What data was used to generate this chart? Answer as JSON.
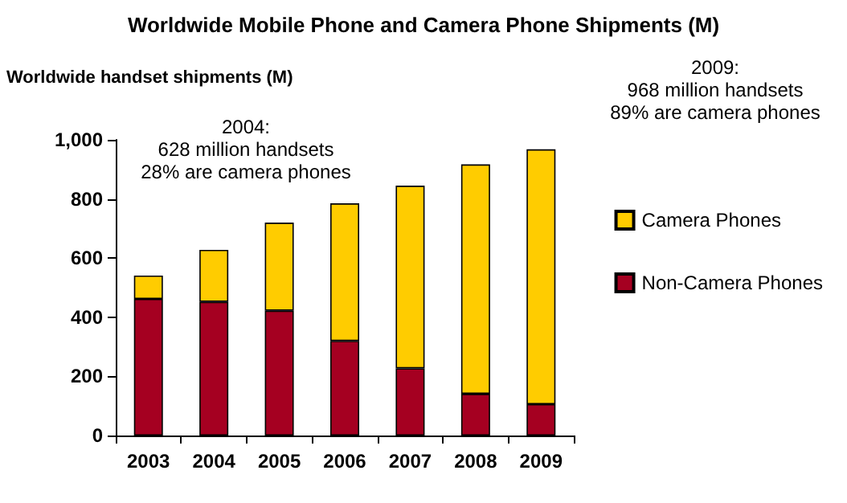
{
  "chart_data": {
    "type": "bar",
    "title": "Worldwide Mobile Phone and Camera Phone Shipments (M)",
    "ylabel": "Worldwide handset shipments (M)",
    "categories": [
      "2003",
      "2004",
      "2005",
      "2006",
      "2007",
      "2008",
      "2009"
    ],
    "series": [
      {
        "name": "Non-Camera Phones",
        "color": "#a50021",
        "values": [
          462,
          452,
          422,
          320,
          227,
          141,
          106
        ]
      },
      {
        "name": "Camera Phones",
        "color": "#ffcc00",
        "values": [
          79,
          176,
          298,
          465,
          618,
          776,
          862
        ]
      }
    ],
    "stacked": true,
    "ylim": [
      0,
      1000
    ],
    "yticks": [
      0,
      200,
      400,
      600,
      800,
      {
        "value": 1000,
        "label": "1,000"
      }
    ],
    "grid": false,
    "legend": "right",
    "annotations": [
      "2004:\n628 million handsets\n28% are camera phones",
      "2009:\n968 million handsets\n89% are camera phones"
    ]
  }
}
